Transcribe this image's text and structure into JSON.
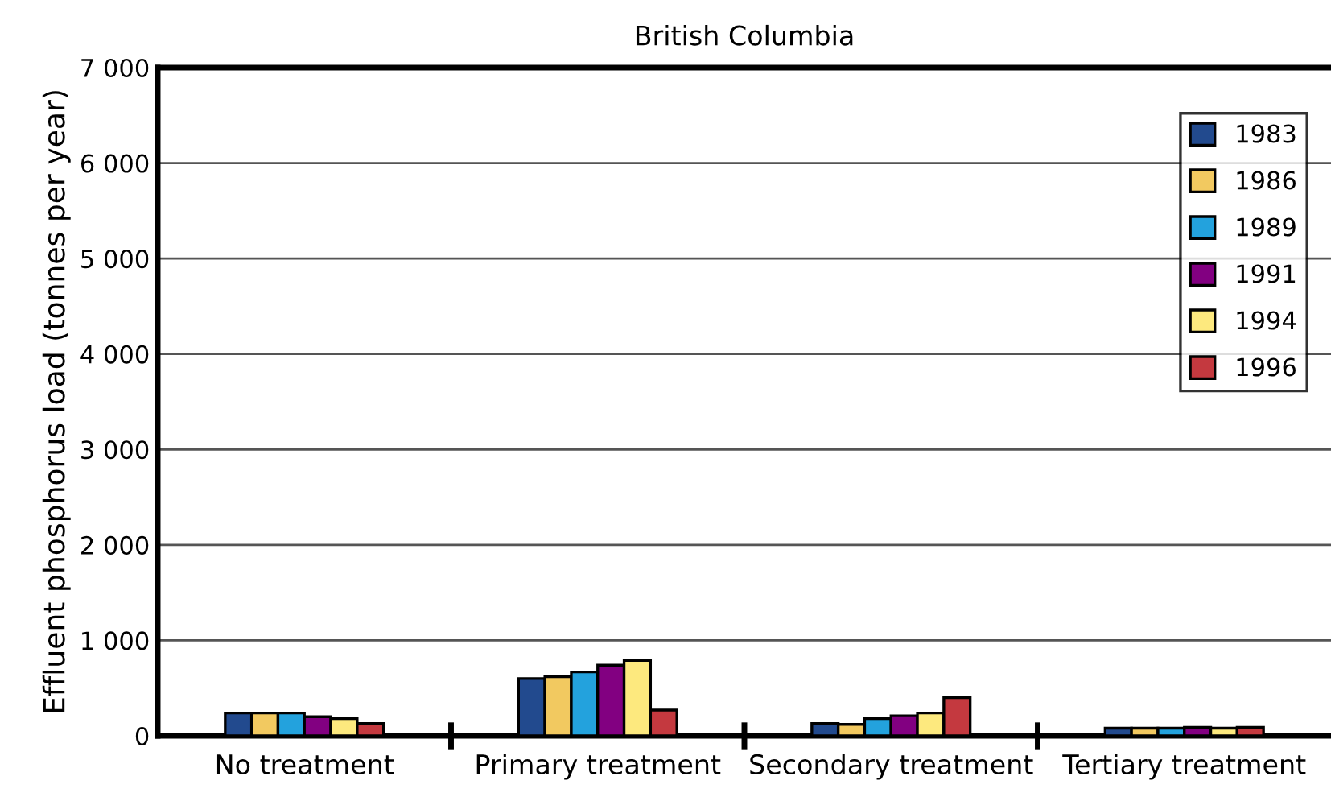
{
  "chart_data": {
    "type": "bar",
    "title": "British Columbia",
    "ylabel": "Effluent phosphorus load (tonnes per year)",
    "categories": [
      "No treatment",
      "Primary treatment",
      "Secondary treatment",
      "Tertiary treatment"
    ],
    "series": [
      {
        "name": "1983",
        "color": "#224a8e",
        "values": [
          240,
          600,
          130,
          80
        ]
      },
      {
        "name": "1986",
        "color": "#f2c960",
        "values": [
          240,
          620,
          120,
          80
        ]
      },
      {
        "name": "1989",
        "color": "#23a2dd",
        "values": [
          240,
          670,
          180,
          80
        ]
      },
      {
        "name": "1991",
        "color": "#820081",
        "values": [
          200,
          740,
          210,
          90
        ]
      },
      {
        "name": "1994",
        "color": "#fde97e",
        "values": [
          180,
          790,
          240,
          80
        ]
      },
      {
        "name": "1996",
        "color": "#c4393f",
        "values": [
          130,
          270,
          400,
          90
        ]
      }
    ],
    "ylim": [
      0,
      7000
    ],
    "yticks": [
      {
        "value": 0,
        "label": "0"
      },
      {
        "value": 1000,
        "label": "1 000"
      },
      {
        "value": 2000,
        "label": "2 000"
      },
      {
        "value": 3000,
        "label": "3 000"
      },
      {
        "value": 4000,
        "label": "4 000"
      },
      {
        "value": 5000,
        "label": "5 000"
      },
      {
        "value": 6000,
        "label": "6 000"
      },
      {
        "value": 7000,
        "label": "7 000"
      }
    ],
    "grid": "y",
    "legend": "top right"
  }
}
